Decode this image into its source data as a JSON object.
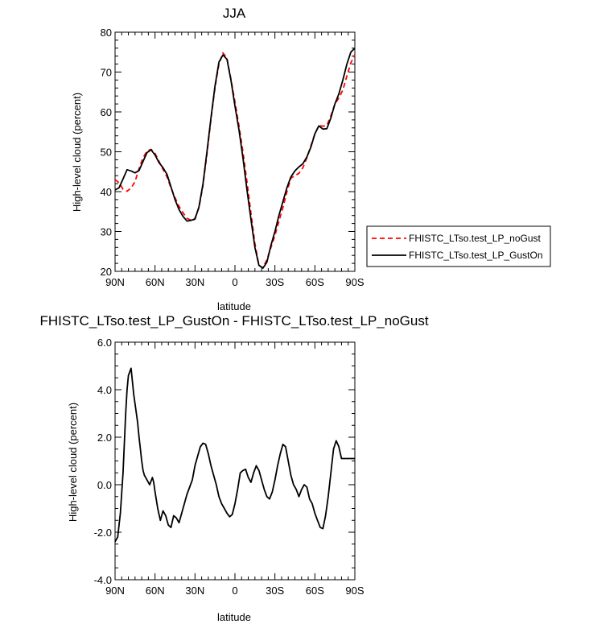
{
  "chart_data": [
    {
      "type": "line",
      "title": "JJA",
      "xlabel": "latitude",
      "ylabel": "High-level cloud (percent)",
      "xlim": [
        90,
        -90
      ],
      "ylim": [
        20,
        80
      ],
      "xticks": [
        90,
        60,
        30,
        0,
        -30,
        -60,
        -90
      ],
      "xtick_labels": [
        "90N",
        "60N",
        "30N",
        "0",
        "30S",
        "60S",
        "90S"
      ],
      "yticks": [
        20,
        30,
        40,
        50,
        60,
        70,
        80
      ],
      "ytick_labels": [
        "20",
        "30",
        "40",
        "50",
        "60",
        "70",
        "80"
      ],
      "legend_position": "right",
      "series": [
        {
          "name": "FHISTC_LTso.test_LP_noGust",
          "color": "#ff0000",
          "dash": "dashed",
          "x": [
            90,
            87,
            84,
            81,
            78,
            75,
            72,
            69,
            66,
            63,
            60,
            57,
            54,
            51,
            48,
            45,
            42,
            39,
            36,
            33,
            30,
            27,
            24,
            21,
            18,
            15,
            12,
            9,
            6,
            3,
            0,
            -3,
            -6,
            -9,
            -12,
            -15,
            -18,
            -21,
            -24,
            -27,
            -30,
            -33,
            -36,
            -39,
            -42,
            -45,
            -48,
            -51,
            -54,
            -57,
            -60,
            -63,
            -66,
            -69,
            -72,
            -75,
            -78,
            -81,
            -84,
            -87,
            -90
          ],
          "y": [
            43,
            42.2,
            40.6,
            40.1,
            40.9,
            42.5,
            45.8,
            48.5,
            50.2,
            50.6,
            49.6,
            47.6,
            45.6,
            43.7,
            40.9,
            38.5,
            36.3,
            34.7,
            33.3,
            32.8,
            33.3,
            36,
            41.6,
            49.5,
            58.2,
            66.1,
            72,
            74.8,
            73.4,
            68.2,
            62.5,
            56.5,
            50,
            42.5,
            34.5,
            27,
            21.5,
            20.9,
            22.9,
            26,
            29,
            32.5,
            36,
            40,
            43.4,
            44,
            44.6,
            46,
            48.5,
            51.5,
            54.5,
            56.6,
            56.4,
            56.6,
            59,
            62,
            63.5,
            65.5,
            69,
            72.3,
            74.3
          ]
        },
        {
          "name": "FHISTC_LTso.test_LP_GustOn",
          "color": "#000000",
          "dash": "solid",
          "x": [
            90,
            87,
            84,
            81,
            78,
            75,
            72,
            69,
            66,
            63,
            60,
            57,
            54,
            51,
            48,
            45,
            42,
            39,
            36,
            33,
            30,
            27,
            24,
            21,
            18,
            15,
            12,
            9,
            6,
            3,
            0,
            -3,
            -6,
            -9,
            -12,
            -15,
            -18,
            -21,
            -24,
            -27,
            -30,
            -33,
            -36,
            -39,
            -42,
            -45,
            -48,
            -51,
            -54,
            -57,
            -60,
            -63,
            -66,
            -69,
            -72,
            -75,
            -78,
            -81,
            -84,
            -87,
            -90
          ],
          "y": [
            40.4,
            41,
            43.2,
            45.5,
            45.2,
            44.7,
            45.3,
            47.6,
            49.8,
            50.5,
            49.2,
            47.3,
            46,
            44.3,
            41.2,
            38,
            35.5,
            33.8,
            32.6,
            32.8,
            33.1,
            36.2,
            42,
            50,
            58.5,
            66.5,
            72.5,
            74.3,
            73.2,
            68,
            61.5,
            55.5,
            48.5,
            40.5,
            33,
            26,
            21.5,
            20.8,
            22.3,
            26.5,
            30,
            34,
            37.5,
            41,
            43.7,
            45.2,
            46.2,
            47,
            48.7,
            51.2,
            54.5,
            56.5,
            55.7,
            55.8,
            58.5,
            62,
            64.5,
            68,
            72,
            75,
            76
          ]
        }
      ]
    },
    {
      "type": "line",
      "title": "FHISTC_LTso.test_LP_GustOn - FHISTC_LTso.test_LP_noGust",
      "xlabel": "latitude",
      "ylabel": "High-level cloud (percent)",
      "xlim": [
        90,
        -90
      ],
      "ylim": [
        -4,
        6
      ],
      "xticks": [
        90,
        60,
        30,
        0,
        -30,
        -60,
        -90
      ],
      "xtick_labels": [
        "90N",
        "60N",
        "30N",
        "0",
        "30S",
        "60S",
        "90S"
      ],
      "yticks": [
        -4,
        -2,
        0,
        2,
        4,
        6
      ],
      "ytick_labels": [
        "-4.0",
        "-2.0",
        "0.0",
        "2.0",
        "4.0",
        "6.0"
      ],
      "series": [
        {
          "color": "#000000",
          "dash": "solid",
          "x": [
            90,
            88,
            86,
            84,
            82,
            81,
            80,
            78,
            76,
            74,
            73,
            72,
            71,
            70,
            69,
            68,
            66,
            64,
            62,
            61,
            60,
            58,
            56,
            54,
            52,
            50,
            48,
            46,
            44,
            42,
            40,
            38,
            36,
            34,
            32,
            30,
            28,
            26,
            24,
            22,
            20,
            18,
            16,
            14,
            12,
            10,
            8,
            6,
            4,
            2,
            0,
            -2,
            -4,
            -6,
            -8,
            -10,
            -12,
            -14,
            -16,
            -18,
            -20,
            -22,
            -24,
            -26,
            -28,
            -30,
            -32,
            -34,
            -36,
            -38,
            -40,
            -42,
            -44,
            -46,
            -48,
            -50,
            -52,
            -54,
            -56,
            -58,
            -60,
            -62,
            -64,
            -66,
            -68,
            -70,
            -72,
            -74,
            -76,
            -78,
            -80,
            -82,
            -84,
            -86,
            -88,
            -90
          ],
          "y": [
            -2.4,
            -2.2,
            -1.2,
            0.5,
            3,
            4,
            4.6,
            4.9,
            3.8,
            3,
            2.6,
            2,
            1.5,
            1,
            0.6,
            0.4,
            0.2,
            0,
            0.3,
            0.1,
            -0.3,
            -1,
            -1.5,
            -1.1,
            -1.3,
            -1.7,
            -1.8,
            -1.3,
            -1.4,
            -1.6,
            -1.2,
            -0.8,
            -0.4,
            -0.1,
            0.2,
            0.8,
            1.2,
            1.6,
            1.75,
            1.7,
            1.3,
            0.8,
            0.4,
            0,
            -0.5,
            -0.8,
            -1,
            -1.2,
            -1.35,
            -1.25,
            -0.8,
            -0.2,
            0.5,
            0.6,
            0.65,
            0.3,
            0.1,
            0.5,
            0.8,
            0.6,
            0.2,
            -0.2,
            -0.5,
            -0.6,
            -0.3,
            0.2,
            0.8,
            1.3,
            1.7,
            1.6,
            1,
            0.4,
            0,
            -0.2,
            -0.5,
            -0.2,
            0,
            -0.1,
            -0.6,
            -0.8,
            -1.2,
            -1.5,
            -1.8,
            -1.85,
            -1.3,
            -0.5,
            0.5,
            1.5,
            1.85,
            1.6,
            1.1,
            1.1,
            1.1,
            1.1,
            1.1,
            1.1
          ]
        }
      ]
    }
  ]
}
